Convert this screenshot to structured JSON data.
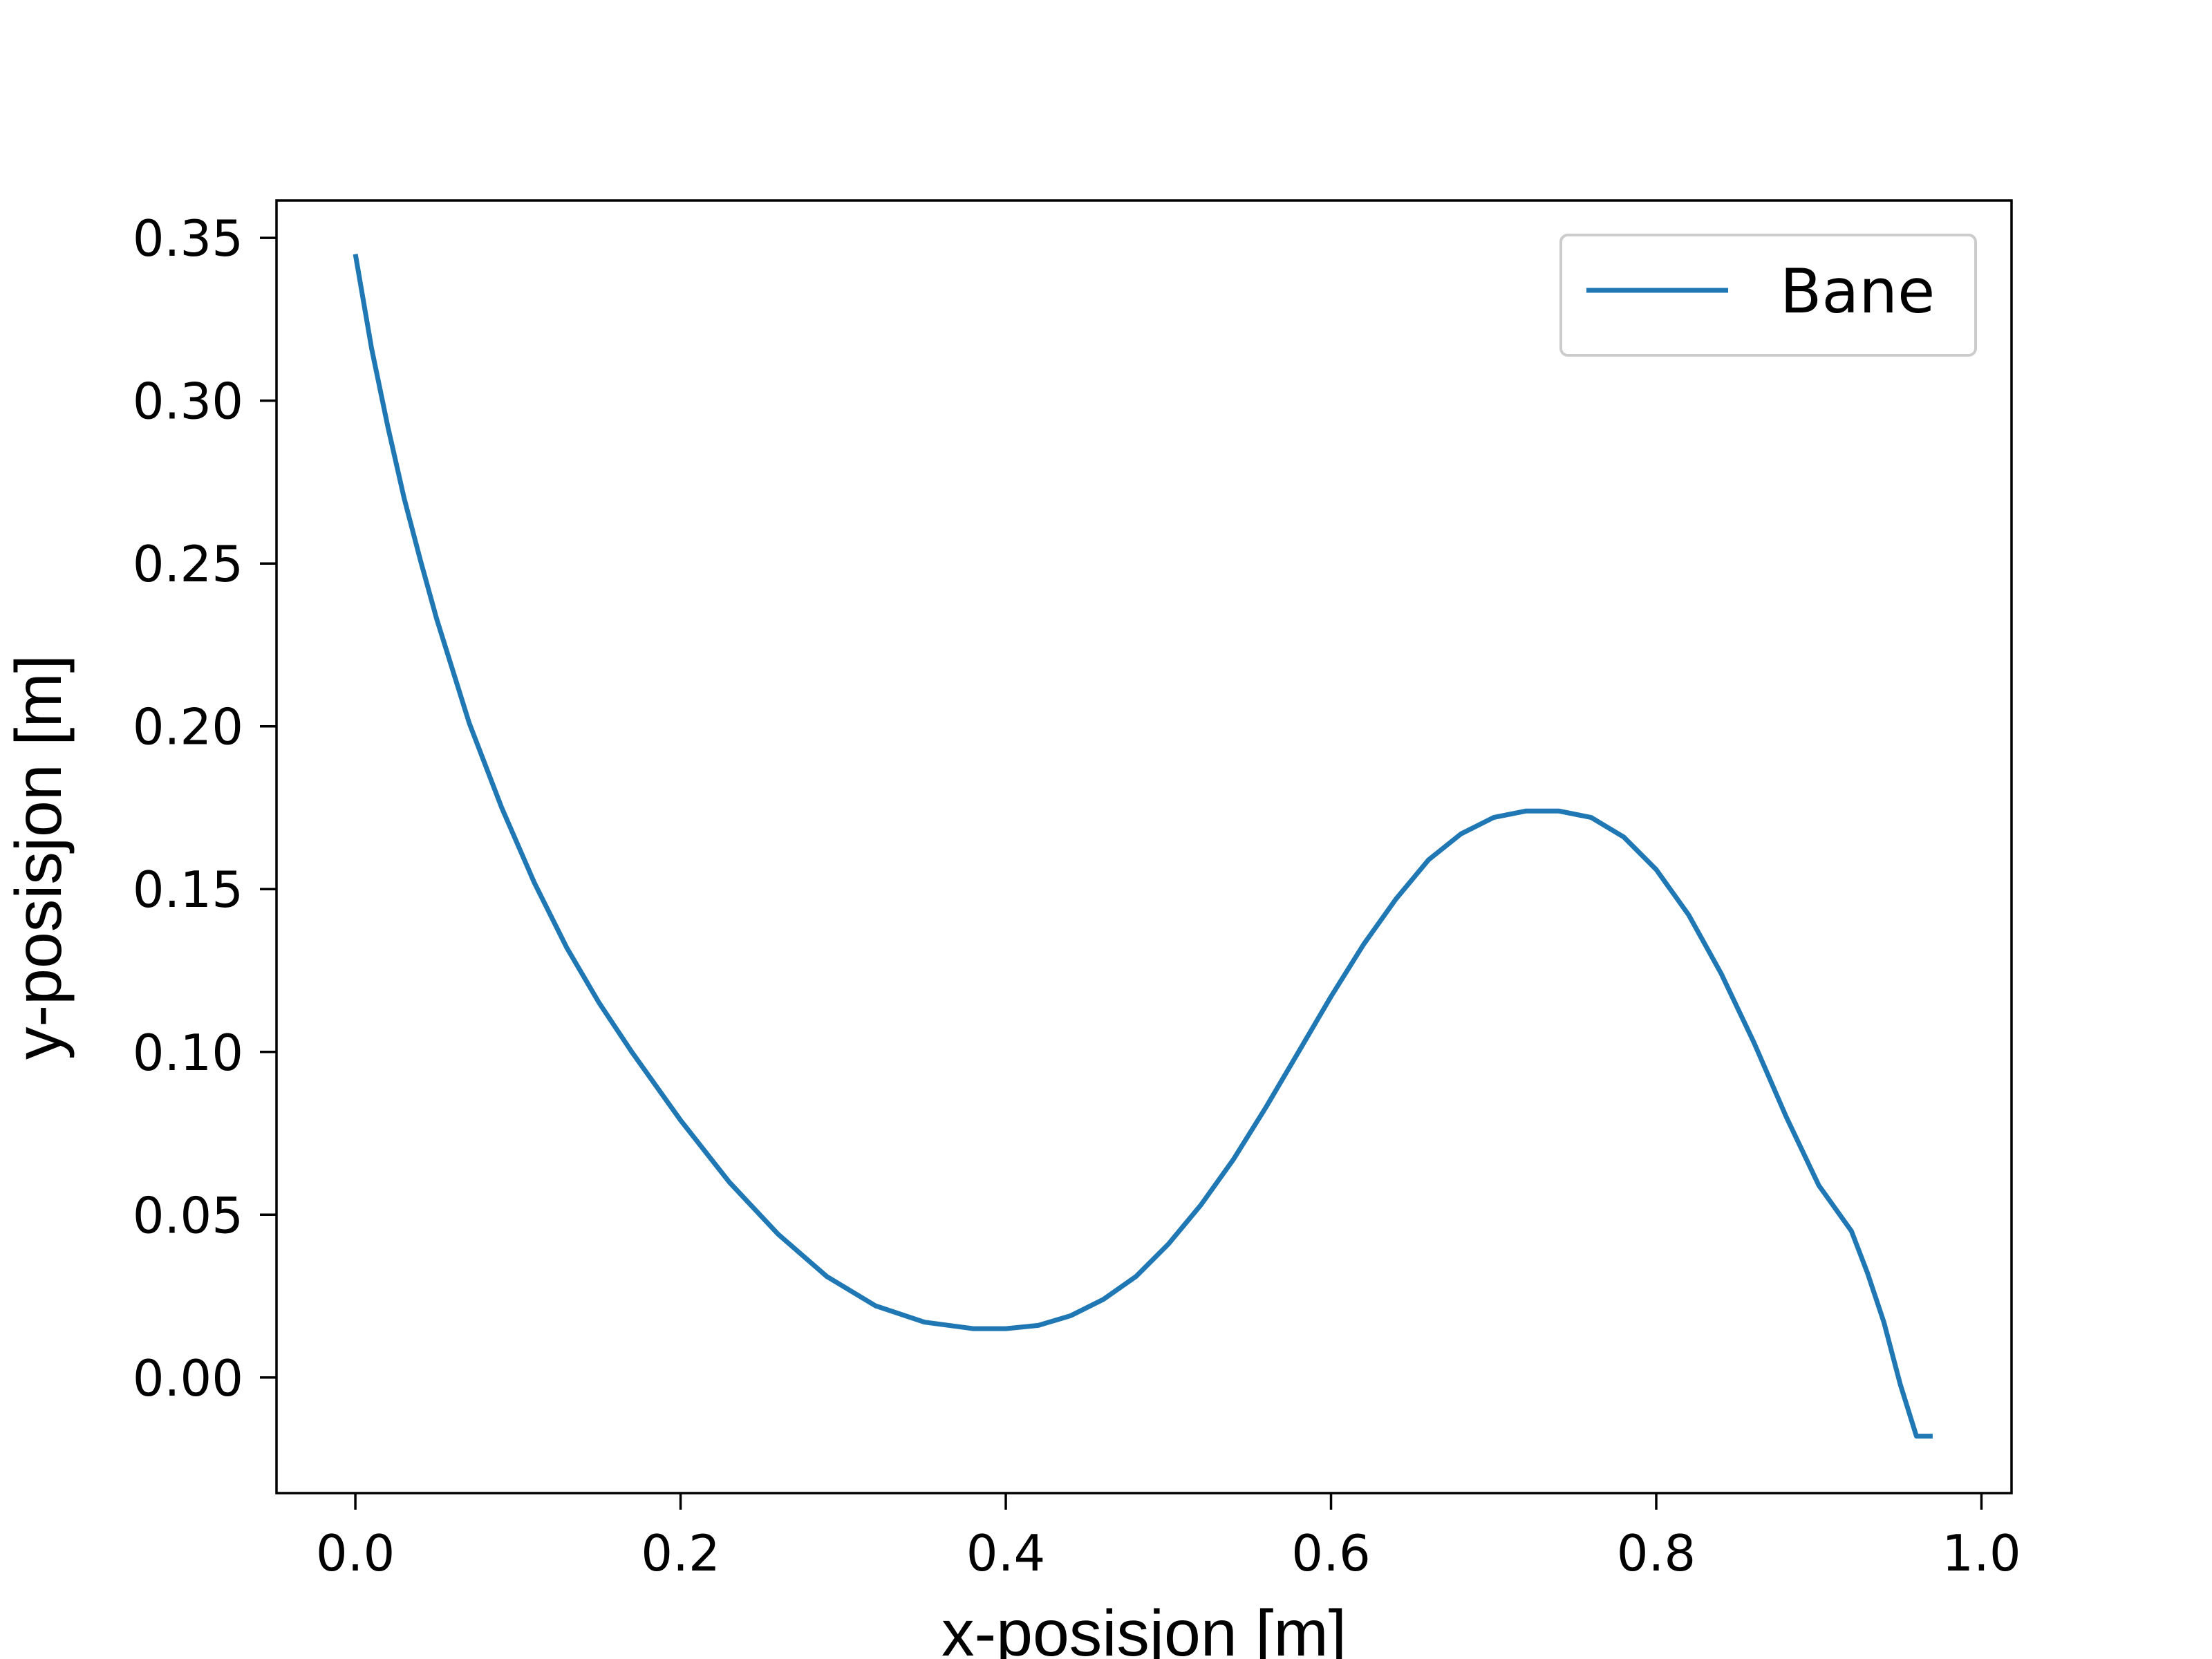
{
  "chart_data": {
    "type": "line",
    "title": "",
    "xlabel": "x-posisjon [m]",
    "ylabel": "y-posisjon [m]",
    "xlim": [
      -0.0485,
      1.0185
    ],
    "ylim": [
      -0.0355,
      0.3615
    ],
    "x_ticks": [
      "0.0",
      "0.2",
      "0.4",
      "0.6",
      "0.8",
      "1.0"
    ],
    "x_tick_values": [
      0.0,
      0.2,
      0.4,
      0.6,
      0.8,
      1.0
    ],
    "y_ticks": [
      "0.00",
      "0.05",
      "0.10",
      "0.15",
      "0.20",
      "0.25",
      "0.30",
      "0.35"
    ],
    "y_tick_values": [
      0.0,
      0.05,
      0.1,
      0.15,
      0.2,
      0.25,
      0.3,
      0.35
    ],
    "grid": false,
    "legend_position": "top-right",
    "series": [
      {
        "name": "Bane",
        "color": "#1f77b4",
        "x": [
          0.0,
          0.01,
          0.02,
          0.03,
          0.04,
          0.05,
          0.07,
          0.09,
          0.11,
          0.13,
          0.15,
          0.17,
          0.2,
          0.23,
          0.26,
          0.29,
          0.32,
          0.35,
          0.38,
          0.4,
          0.42,
          0.44,
          0.46,
          0.48,
          0.5,
          0.52,
          0.54,
          0.56,
          0.58,
          0.6,
          0.62,
          0.64,
          0.66,
          0.68,
          0.7,
          0.72,
          0.74,
          0.76,
          0.78,
          0.8,
          0.82,
          0.84,
          0.86,
          0.88,
          0.9,
          0.92,
          0.93,
          0.94,
          0.95,
          0.96,
          0.97
        ],
        "y": [
          0.345,
          0.316,
          0.292,
          0.27,
          0.251,
          0.233,
          0.201,
          0.175,
          0.152,
          0.132,
          0.115,
          0.1,
          0.079,
          0.06,
          0.044,
          0.031,
          0.022,
          0.017,
          0.015,
          0.015,
          0.016,
          0.019,
          0.024,
          0.031,
          0.041,
          0.053,
          0.067,
          0.083,
          0.1,
          0.117,
          0.133,
          0.147,
          0.159,
          0.167,
          0.172,
          0.174,
          0.174,
          0.172,
          0.166,
          0.156,
          0.142,
          0.124,
          0.103,
          0.08,
          0.059,
          0.045,
          0.032,
          0.017,
          -0.002,
          -0.018,
          -0.018
        ]
      }
    ]
  }
}
